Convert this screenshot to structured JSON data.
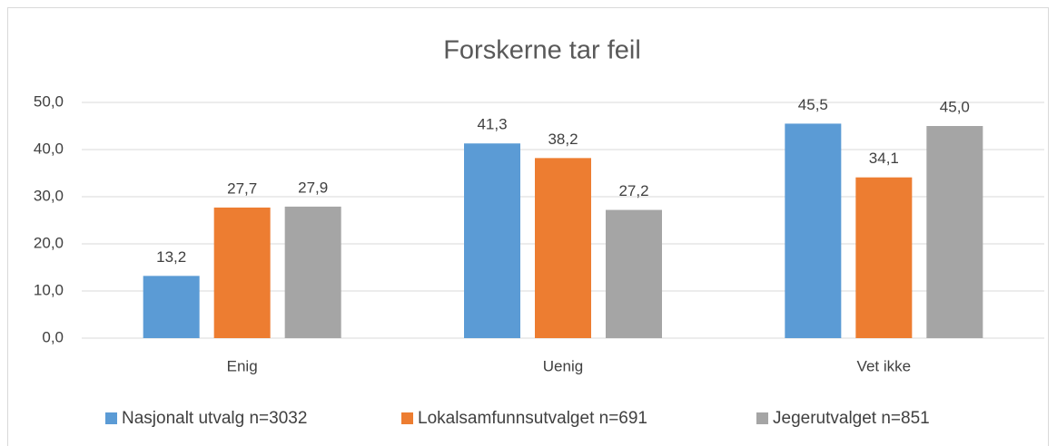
{
  "chart_data": {
    "type": "bar",
    "title": "Forskerne tar feil",
    "categories": [
      "Enig",
      "Uenig",
      "Vet ikke"
    ],
    "series": [
      {
        "name": "Nasjonalt utvalg n=3032",
        "color": "#5b9bd5",
        "values": [
          13.2,
          41.3,
          45.5
        ],
        "value_labels": [
          "13,2",
          "41,3",
          "45,5"
        ]
      },
      {
        "name": "Lokalsamfunnsutvalget n=691",
        "color": "#ed7d31",
        "values": [
          27.7,
          38.2,
          34.1
        ],
        "value_labels": [
          "27,7",
          "38,2",
          "34,1"
        ]
      },
      {
        "name": "Jegerutvalget n=851",
        "color": "#a5a5a5",
        "values": [
          27.9,
          27.2,
          45.0
        ],
        "value_labels": [
          "27,9",
          "27,2",
          "45,0"
        ]
      }
    ],
    "ylim": [
      0,
      50
    ],
    "yticks": [
      {
        "value": 0,
        "label": "0,0"
      },
      {
        "value": 10,
        "label": "10,0"
      },
      {
        "value": 20,
        "label": "20,0"
      },
      {
        "value": 30,
        "label": "30,0"
      },
      {
        "value": 40,
        "label": "40,0"
      },
      {
        "value": 50,
        "label": "50,0"
      }
    ],
    "grid": true,
    "legend": "bottom"
  }
}
